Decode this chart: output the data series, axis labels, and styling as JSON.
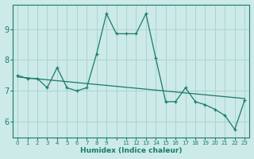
{
  "xlabel": "Humidex (Indice chaleur)",
  "ylabel": "",
  "bg_color": "#cceae8",
  "grid_color": "#aad4d0",
  "line_color": "#1a7a6a",
  "xlim": [
    -0.5,
    23.5
  ],
  "ylim": [
    5.5,
    9.8
  ],
  "yticks": [
    6,
    7,
    8,
    9
  ],
  "xtick_positions": [
    0,
    1,
    2,
    3,
    4,
    5,
    6,
    7,
    8,
    9,
    10,
    11,
    12,
    13,
    14,
    15,
    16,
    17,
    18,
    19,
    20,
    21,
    22,
    23
  ],
  "xtick_labels": [
    "0",
    "1",
    "2",
    "3",
    "4",
    "5",
    "6",
    "7",
    "8",
    "9",
    "",
    "11",
    "12",
    "13",
    "14",
    "15",
    "16",
    "17",
    "18",
    "19",
    "20",
    "21",
    "22",
    "23"
  ],
  "data_x": [
    0,
    1,
    2,
    3,
    4,
    5,
    6,
    7,
    8,
    9,
    10,
    11,
    12,
    13,
    14,
    15,
    16,
    17,
    18,
    19,
    20,
    21,
    22,
    23
  ],
  "data_y": [
    7.5,
    7.4,
    7.4,
    7.1,
    7.75,
    7.1,
    7.0,
    7.1,
    8.2,
    9.5,
    8.85,
    8.85,
    8.85,
    9.5,
    8.05,
    6.65,
    6.65,
    7.1,
    6.65,
    6.55,
    6.4,
    6.2,
    5.75,
    6.7
  ],
  "trend_x": [
    0,
    23
  ],
  "trend_y": [
    7.45,
    6.75
  ]
}
